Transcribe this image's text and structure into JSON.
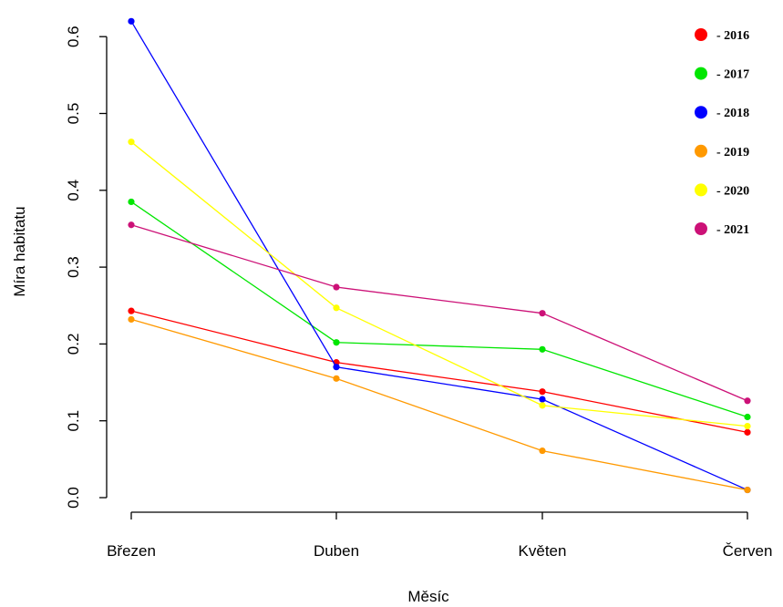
{
  "chart_data": {
    "type": "line",
    "title": "",
    "xlabel": "Měsíc",
    "ylabel": "Míra habitatu",
    "categories": [
      "Březen",
      "Duben",
      "Květen",
      "Červen"
    ],
    "ylim": [
      0,
      0.62
    ],
    "yticks": [
      "0.0",
      "0.1",
      "0.2",
      "0.3",
      "0.4",
      "0.5",
      "0.6"
    ],
    "grid": false,
    "legend": "top-right",
    "series": [
      {
        "name": "- 2016",
        "color": "#ff0000",
        "values": [
          0.243,
          0.176,
          0.138,
          0.085
        ]
      },
      {
        "name": "- 2017",
        "color": "#00e600",
        "values": [
          0.385,
          0.202,
          0.193,
          0.105
        ]
      },
      {
        "name": "- 2018",
        "color": "#0000ff",
        "values": [
          0.62,
          0.17,
          0.128,
          0.01
        ]
      },
      {
        "name": "- 2019",
        "color": "#ff9900",
        "values": [
          0.232,
          0.155,
          0.061,
          0.01
        ]
      },
      {
        "name": "- 2020",
        "color": "#ffff00",
        "values": [
          0.463,
          0.247,
          0.12,
          0.093
        ]
      },
      {
        "name": "- 2021",
        "color": "#cc1177",
        "values": [
          0.355,
          0.274,
          0.24,
          0.126
        ]
      }
    ]
  }
}
